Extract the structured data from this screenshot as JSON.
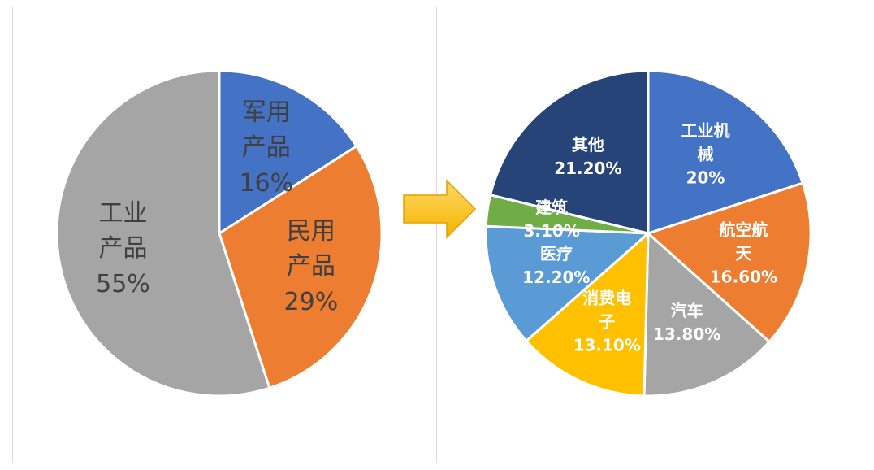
{
  "chart_data": [
    {
      "type": "pie",
      "categories": [
        "军用产品",
        "民用产品",
        "工业产品"
      ],
      "values": [
        16,
        29,
        55
      ],
      "value_labels": [
        "16%",
        "29%",
        "55%"
      ],
      "colors": [
        "#4472c4",
        "#ed7d31",
        "#a5a5a5"
      ]
    },
    {
      "type": "pie",
      "categories": [
        "工业机械",
        "航空航天",
        "汽车",
        "消费电子",
        "医疗",
        "建筑",
        "其他"
      ],
      "values": [
        20,
        16.6,
        13.8,
        13.1,
        12.2,
        3.1,
        21.2
      ],
      "value_labels": [
        "20%",
        "16.60%",
        "13.80%",
        "13.10%",
        "12.20%",
        "3.10%",
        "21.20%"
      ],
      "colors": [
        "#4472c4",
        "#ed7d31",
        "#a5a5a5",
        "#ffc000",
        "#5b9bd5",
        "#70ad47",
        "#264478"
      ]
    }
  ]
}
